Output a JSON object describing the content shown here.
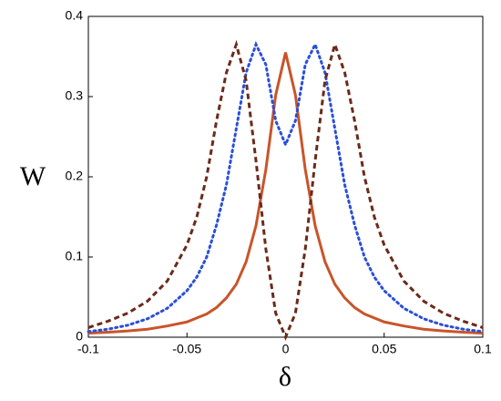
{
  "chart_data": {
    "type": "line",
    "y_label": "W",
    "x_label": "δ",
    "xlim": [
      -0.1,
      0.1
    ],
    "ylim": [
      0,
      0.4
    ],
    "xticks": [
      -0.1,
      -0.05,
      0,
      0.05,
      0.1
    ],
    "yticks": [
      0,
      0.1,
      0.2,
      0.3,
      0.4
    ],
    "x": [
      -0.1,
      -0.09,
      -0.08,
      -0.07,
      -0.06,
      -0.05,
      -0.045,
      -0.04,
      -0.035,
      -0.03,
      -0.025,
      -0.02,
      -0.015,
      -0.01,
      -0.005,
      0,
      0.005,
      0.01,
      0.015,
      0.02,
      0.025,
      0.03,
      0.035,
      0.04,
      0.045,
      0.05,
      0.06,
      0.07,
      0.08,
      0.09,
      0.1
    ],
    "series": [
      {
        "color": "#c8552a",
        "style": "solid",
        "values": [
          0.005,
          0.0062,
          0.0078,
          0.01,
          0.014,
          0.019,
          0.024,
          0.029,
          0.037,
          0.049,
          0.066,
          0.094,
          0.139,
          0.209,
          0.302,
          0.355,
          0.302,
          0.209,
          0.139,
          0.094,
          0.066,
          0.049,
          0.037,
          0.029,
          0.024,
          0.019,
          0.014,
          0.01,
          0.0078,
          0.0062,
          0.005
        ]
      },
      {
        "color": "#2a4fd8",
        "style": "dotted",
        "values": [
          0.007,
          0.01,
          0.015,
          0.023,
          0.036,
          0.058,
          0.075,
          0.1,
          0.14,
          0.19,
          0.26,
          0.33,
          0.365,
          0.34,
          0.27,
          0.24,
          0.27,
          0.34,
          0.365,
          0.33,
          0.26,
          0.19,
          0.14,
          0.1,
          0.075,
          0.058,
          0.036,
          0.023,
          0.015,
          0.01,
          0.007
        ]
      },
      {
        "color": "#6b2a1a",
        "style": "dashed",
        "values": [
          0.012,
          0.02,
          0.03,
          0.045,
          0.07,
          0.115,
          0.15,
          0.2,
          0.27,
          0.33,
          0.365,
          0.32,
          0.22,
          0.11,
          0.03,
          0,
          0.03,
          0.11,
          0.22,
          0.32,
          0.365,
          0.33,
          0.27,
          0.2,
          0.15,
          0.115,
          0.07,
          0.045,
          0.03,
          0.02,
          0.012
        ]
      }
    ]
  }
}
